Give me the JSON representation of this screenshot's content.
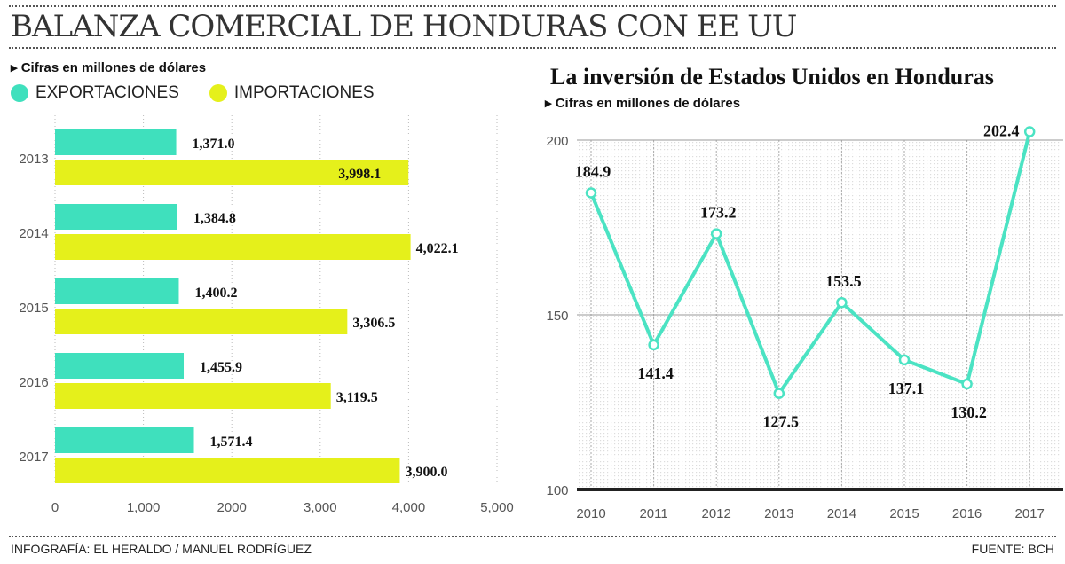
{
  "header": {
    "title": "BALANZA COMERCIAL DE HONDURAS CON EE UU"
  },
  "footer": {
    "credit": "INFOGRAFÍA: EL HERALDO / MANUEL RODRÍGUEZ",
    "source": "FUENTE: BCH"
  },
  "colors": {
    "exports": "#3fe0bd",
    "imports": "#e5f01b",
    "line": "#4be3c3"
  },
  "chart_data": [
    {
      "type": "bar",
      "orientation": "horizontal",
      "subtitle": "Cifras en millones de dólares",
      "categories": [
        "2013",
        "2014",
        "2015",
        "2016",
        "2017"
      ],
      "series": [
        {
          "name": "EXPORTACIONES",
          "values": [
            1371.0,
            1384.8,
            1400.2,
            1455.9,
            1571.4
          ],
          "labels": [
            "1,371.0",
            "1,384.8",
            "1,400.2",
            "1,455.9",
            "1,571.4"
          ]
        },
        {
          "name": "IMPORTACIONES",
          "values": [
            3998.1,
            4022.1,
            3306.5,
            3119.5,
            3900.0
          ],
          "labels": [
            "3,998.1",
            "4,022.1",
            "3,306.5",
            "3,119.5",
            "3,900.0"
          ]
        }
      ],
      "xlim": [
        0,
        5000
      ],
      "xticks": [
        0,
        1000,
        2000,
        3000,
        4000,
        5000
      ],
      "xtick_labels": [
        "0",
        "1,000",
        "2000",
        "3,000",
        "4,000",
        "5,000"
      ],
      "legend": "top-left"
    },
    {
      "type": "line",
      "title": "La inversión de Estados Unidos en Honduras",
      "subtitle": "Cifras en millones de dólares",
      "x": [
        "2010",
        "2011",
        "2012",
        "2013",
        "2014",
        "2015",
        "2016",
        "2017"
      ],
      "values": [
        184.9,
        141.4,
        173.2,
        127.5,
        153.5,
        137.1,
        130.2,
        202.4
      ],
      "labels": [
        "184.9",
        "141.4",
        "173.2",
        "127.5",
        "153.5",
        "137.1",
        "130.2",
        "202.4"
      ],
      "ylim": [
        100,
        200
      ],
      "yticks": [
        "100",
        "150",
        "200"
      ],
      "grid": true
    }
  ]
}
